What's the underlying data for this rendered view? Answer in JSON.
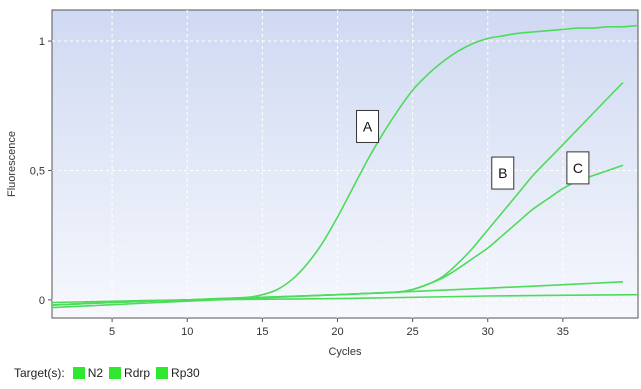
{
  "chart_data": {
    "type": "line",
    "title": "",
    "xlabel": "Cycles",
    "ylabel": "Fluorescence",
    "xlim": [
      1,
      40
    ],
    "ylim": [
      -0.07,
      1.12
    ],
    "x_ticks": [
      5,
      10,
      15,
      20,
      25,
      30,
      35
    ],
    "x_tick_labels": [
      "5",
      "10",
      "15",
      "20",
      "25",
      "30",
      "35"
    ],
    "y_ticks": [
      0,
      0.5,
      1
    ],
    "y_tick_labels": [
      "0",
      "0,5",
      "1"
    ],
    "grid": true,
    "line_color": "#4ddb5a",
    "series": [
      {
        "x": [
          1,
          5,
          10,
          12,
          14,
          15,
          16,
          17,
          18,
          19,
          20,
          21,
          22,
          23,
          24,
          25,
          26,
          27,
          28,
          29,
          30,
          31,
          32,
          33,
          34,
          35,
          36,
          37,
          38,
          39,
          40
        ],
        "y": [
          -0.02,
          -0.01,
          0.0,
          0.005,
          0.01,
          0.02,
          0.04,
          0.08,
          0.14,
          0.22,
          0.32,
          0.43,
          0.54,
          0.64,
          0.73,
          0.81,
          0.87,
          0.92,
          0.96,
          0.99,
          1.01,
          1.02,
          1.03,
          1.035,
          1.04,
          1.045,
          1.05,
          1.05,
          1.055,
          1.055,
          1.06
        ]
      },
      {
        "x": [
          1,
          5,
          10,
          15,
          20,
          22,
          24,
          25,
          26,
          27,
          28,
          29,
          30,
          31,
          32,
          33,
          34,
          35,
          36,
          37,
          38,
          39
        ],
        "y": [
          -0.02,
          -0.01,
          0.0,
          0.01,
          0.02,
          0.025,
          0.03,
          0.04,
          0.06,
          0.09,
          0.14,
          0.2,
          0.27,
          0.34,
          0.41,
          0.48,
          0.54,
          0.6,
          0.66,
          0.72,
          0.78,
          0.84
        ]
      },
      {
        "x": [
          1,
          5,
          10,
          15,
          20,
          22,
          24,
          25,
          26,
          27,
          28,
          29,
          30,
          31,
          32,
          33,
          34,
          35,
          36,
          37,
          38,
          39
        ],
        "y": [
          -0.02,
          -0.01,
          0.0,
          0.01,
          0.02,
          0.025,
          0.03,
          0.04,
          0.06,
          0.085,
          0.12,
          0.16,
          0.2,
          0.25,
          0.3,
          0.35,
          0.39,
          0.43,
          0.46,
          0.48,
          0.5,
          0.52
        ]
      },
      {
        "x": [
          1,
          10,
          20,
          30,
          39
        ],
        "y": [
          -0.03,
          -0.005,
          0.02,
          0.045,
          0.07
        ]
      },
      {
        "x": [
          1,
          10,
          20,
          30,
          40
        ],
        "y": [
          -0.01,
          0.0,
          0.005,
          0.015,
          0.02
        ]
      }
    ],
    "annotations": [
      {
        "text": "A",
        "x": 22,
        "y": 0.67
      },
      {
        "text": "B",
        "x": 31,
        "y": 0.49
      },
      {
        "text": "C",
        "x": 36,
        "y": 0.51
      }
    ]
  },
  "legend": {
    "title": "Target(s):",
    "items": [
      {
        "label": "N2",
        "color": "#2ee82e"
      },
      {
        "label": "Rdrp",
        "color": "#2ee82e"
      },
      {
        "label": "Rp30",
        "color": "#2ee82e"
      }
    ]
  }
}
